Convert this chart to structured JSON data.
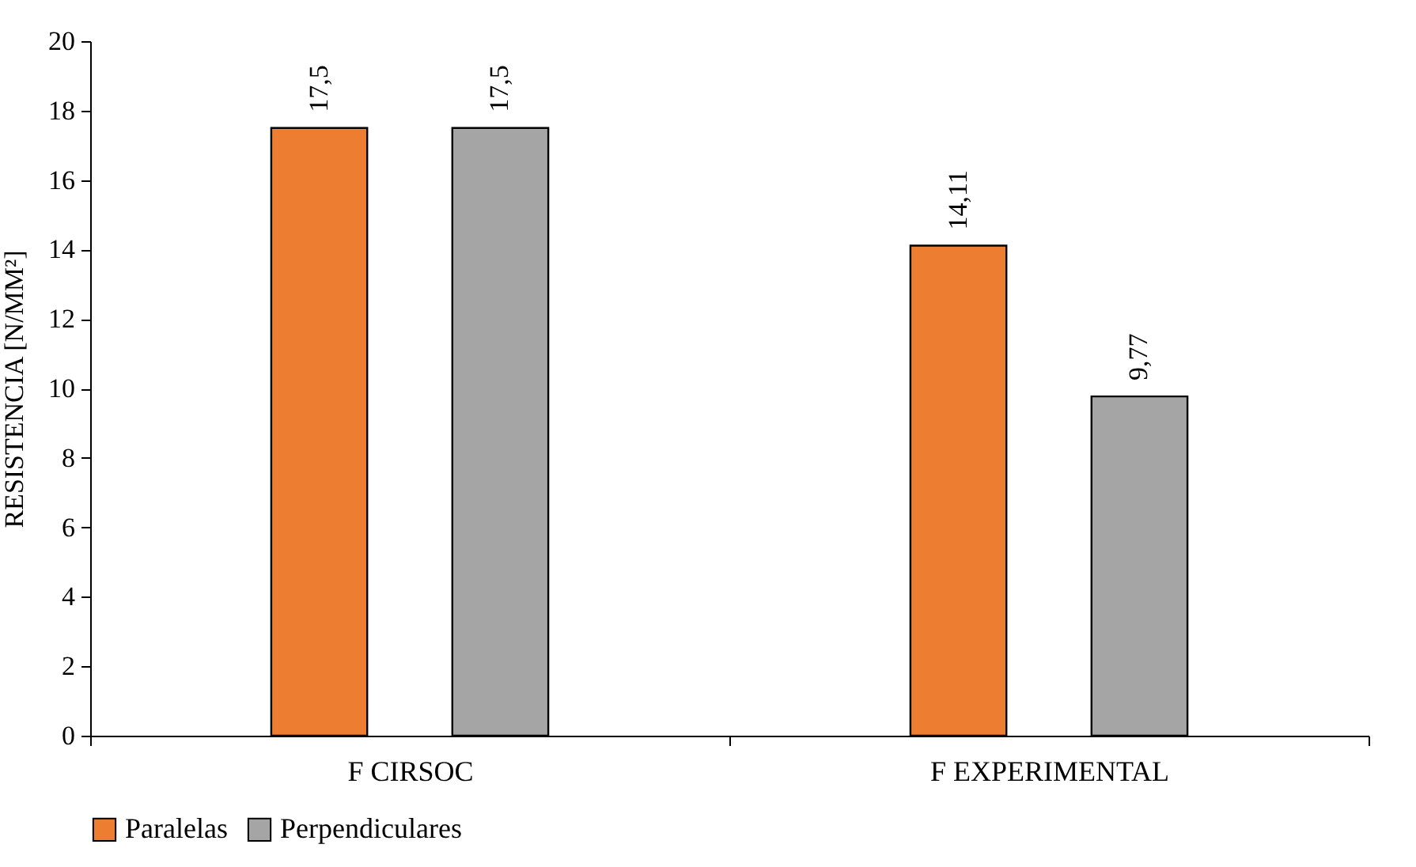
{
  "chart_data": {
    "type": "bar",
    "ylabel": "RESISTENCIA [N/MM²]",
    "categories": [
      "F CIRSOC",
      "F EXPERIMENTAL"
    ],
    "series": [
      {
        "name": "Paralelas",
        "color": "#ed7d31",
        "values": [
          17.5,
          14.11
        ],
        "value_labels": [
          "17,5",
          "14,11"
        ]
      },
      {
        "name": "Perpendiculares",
        "color": "#a5a5a5",
        "values": [
          17.5,
          9.77
        ],
        "value_labels": [
          "17,5",
          "9,77"
        ]
      }
    ],
    "ylim": [
      0,
      20
    ],
    "yticks": [
      0,
      2,
      4,
      6,
      8,
      10,
      12,
      14,
      16,
      18,
      20
    ],
    "grid": false,
    "legend": "bottom"
  }
}
